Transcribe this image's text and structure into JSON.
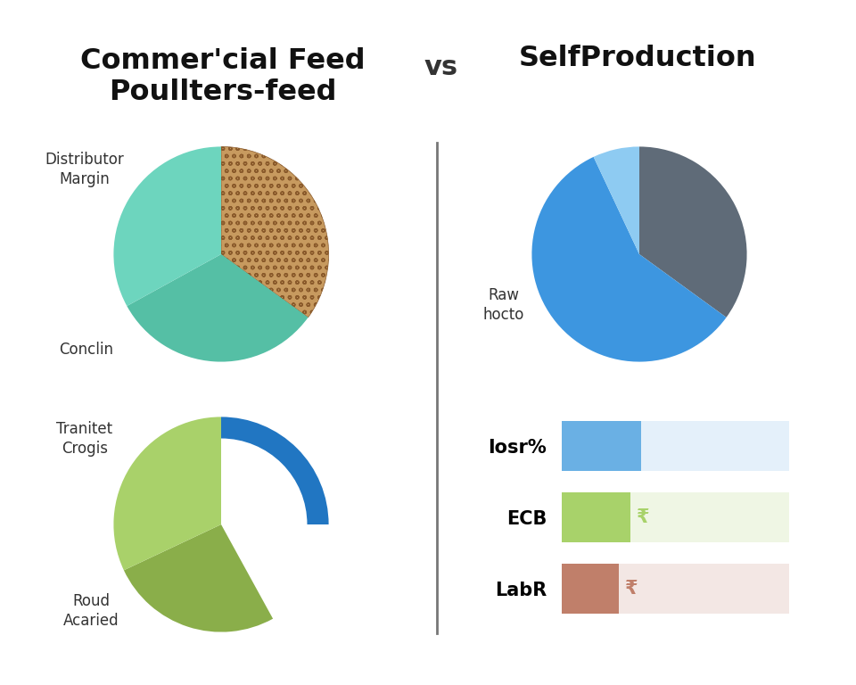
{
  "header": {
    "left_title": "Commer'cial Feed\nPoullters-feed",
    "middle": "vs",
    "right_title": "SelfProduction"
  },
  "chart_data": [
    {
      "type": "pie",
      "categories": [
        null,
        "Conclin",
        "Distributor Margin"
      ],
      "values": [
        35,
        32,
        33
      ],
      "colors": [
        "#c79a5f",
        "#55bfa5",
        "#6dd5be"
      ]
    },
    {
      "type": "pie",
      "categories": [
        null,
        "Raw hocto",
        null
      ],
      "values": [
        35,
        58,
        7
      ],
      "colors": [
        "#5f6b78",
        "#3d96e0",
        "#8ecbf2"
      ]
    },
    {
      "type": "pie",
      "categories": [
        null,
        null,
        "Roud Acaried",
        "Tranitet Crogis"
      ],
      "values": [
        25,
        17,
        26,
        32
      ],
      "colors": [
        "#2176c2",
        "#ffffff",
        "#8aae4a",
        "#a9d16a"
      ]
    },
    {
      "type": "bar",
      "orientation": "horizontal",
      "categories": [
        "Iosr%",
        "ECB",
        "LabR"
      ],
      "values": [
        35,
        30,
        25
      ],
      "colors": [
        "#6ab0e4",
        "#a8d26a",
        "#c07f6a"
      ],
      "xlim": [
        0,
        100
      ],
      "tick_labels": "y",
      "annotations": [
        {
          "category": "ECB",
          "text": "₹"
        },
        {
          "category": "LabR",
          "text": "₹"
        }
      ]
    }
  ]
}
